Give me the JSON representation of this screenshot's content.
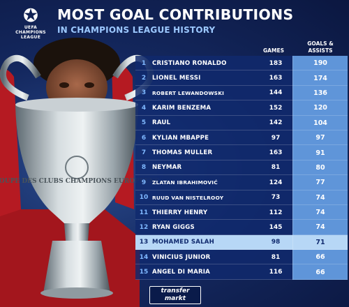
{
  "logo": {
    "mark_icon": "champions-league-starball-icon",
    "line1": "UEFA",
    "line2": "CHAMPIONS",
    "line3": "LEAGUE"
  },
  "title": "MOST GOAL CONTRIBUTIONS",
  "subtitle": "IN CHAMPIONS LEAGUE HISTORY",
  "columns": {
    "games": "GAMES",
    "goals_assists_line1": "GOALS &",
    "goals_assists_line2": "ASSISTS"
  },
  "rows": [
    {
      "rank": "1",
      "name": "CRISTIANO RONALDO",
      "games": "183",
      "ga": "190"
    },
    {
      "rank": "2",
      "name": "LIONEL MESSI",
      "games": "163",
      "ga": "174"
    },
    {
      "rank": "3",
      "name": "ROBERT LEWANDOWSKI",
      "games": "144",
      "ga": "136"
    },
    {
      "rank": "4",
      "name": "KARIM BENZEMA",
      "games": "152",
      "ga": "120"
    },
    {
      "rank": "5",
      "name": "RAÚL",
      "games": "142",
      "ga": "104"
    },
    {
      "rank": "6",
      "name": "KYLIAN MBAPPÉ",
      "games": "97",
      "ga": "97"
    },
    {
      "rank": "7",
      "name": "THOMAS MÜLLER",
      "games": "163",
      "ga": "91"
    },
    {
      "rank": "8",
      "name": "NEYMAR",
      "games": "81",
      "ga": "80"
    },
    {
      "rank": "9",
      "name": "ZLATAN IBRAHIMOVIĆ",
      "games": "124",
      "ga": "77"
    },
    {
      "rank": "10",
      "name": "RUUD VAN NISTELROOY",
      "games": "73",
      "ga": "74"
    },
    {
      "rank": "11",
      "name": "THIERRY HENRY",
      "games": "112",
      "ga": "74"
    },
    {
      "rank": "12",
      "name": "RYAN GIGGS",
      "games": "145",
      "ga": "74"
    },
    {
      "rank": "13",
      "name": "MOHAMED SALAH",
      "games": "98",
      "ga": "71"
    },
    {
      "rank": "14",
      "name": "VINICIUS JUNIOR",
      "games": "81",
      "ga": "66"
    },
    {
      "rank": "15",
      "name": "ÁNGEL DI MARÍA",
      "games": "116",
      "ga": "66"
    }
  ],
  "highlight_rank": "13",
  "trophy_engraving": "COUPE DES CLUBS CHAMPIONS EUROPEENS",
  "brand": {
    "line1": "transfer",
    "line2": "markt"
  },
  "colors": {
    "background": "#14285f",
    "table_row": "#102a6e",
    "ga_column": "#5f95d9",
    "highlight_row": "#b7d7f6",
    "subtitle": "#9cc8ff"
  }
}
